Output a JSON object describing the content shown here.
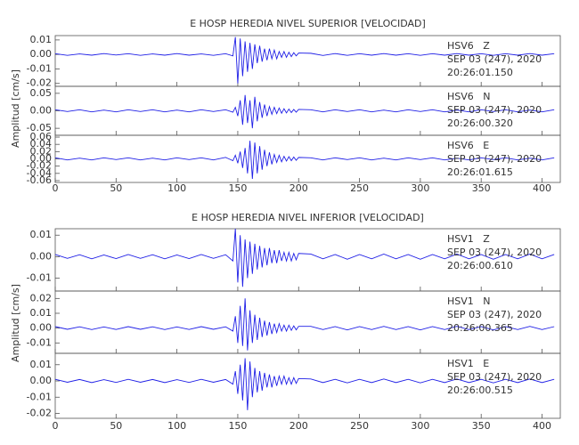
{
  "chart_data": [
    {
      "type": "line",
      "title": "E HOSP HEREDIA NIVEL SUPERIOR [VELOCIDAD]",
      "y_label": "Amplitud [cm/s]",
      "xlim": [
        0,
        415
      ],
      "xticks": [
        0,
        50,
        100,
        150,
        200,
        250,
        300,
        350,
        400
      ],
      "x": [
        0,
        10,
        20,
        30,
        40,
        50,
        60,
        70,
        80,
        90,
        100,
        110,
        120,
        130,
        140,
        146,
        148,
        150,
        152,
        154,
        156,
        158,
        160,
        162,
        164,
        166,
        168,
        170,
        172,
        174,
        176,
        178,
        180,
        182,
        184,
        186,
        188,
        190,
        192,
        194,
        196,
        198,
        200,
        210,
        220,
        230,
        240,
        250,
        260,
        270,
        280,
        290,
        300,
        310,
        320,
        330,
        340,
        350,
        360,
        370,
        380,
        390,
        400,
        410
      ],
      "panels": [
        {
          "ylim": [
            -0.022,
            0.013
          ],
          "yticks": [
            -0.02,
            -0.01,
            {
              "value": 0,
              "label": "0.00"
            },
            0.01
          ],
          "color": "#1f1fe6",
          "annotation": [
            "HSV6   Z",
            "SEP 03 (247), 2020",
            "20:26:01.150"
          ],
          "values": [
            0.0005,
            -0.0006,
            0.0004,
            -0.0005,
            0.0006,
            -0.0004,
            0.0005,
            -0.0006,
            0.0004,
            -0.0005,
            0.0006,
            -0.0005,
            0.0004,
            -0.0006,
            0.0005,
            -0.001,
            0.012,
            -0.02,
            0.011,
            -0.015,
            0.009,
            -0.012,
            0.008,
            -0.01,
            0.007,
            -0.006,
            0.006,
            -0.005,
            0.004,
            -0.004,
            0.004,
            -0.003,
            0.003,
            -0.003,
            0.002,
            -0.002,
            0.002,
            -0.002,
            0.0015,
            -0.0015,
            0.0012,
            -0.001,
            0.001,
            0.0008,
            -0.0007,
            0.0006,
            -0.0006,
            0.0005,
            -0.0005,
            0.0006,
            -0.0005,
            0.0005,
            -0.0006,
            0.0005,
            -0.0005,
            0.0006,
            -0.0005,
            0.0005,
            -0.0006,
            0.0005,
            -0.0005,
            0.0006,
            -0.0005,
            0.0005
          ]
        },
        {
          "ylim": [
            -0.07,
            0.07
          ],
          "yticks": [
            -0.05,
            {
              "value": 0,
              "label": "0.00"
            },
            0.05
          ],
          "color": "#1f1fe6",
          "annotation": [
            "HSV6   N",
            "SEP 03 (247), 2020",
            "20:26:00.320"
          ],
          "values": [
            0.003,
            -0.002,
            0.003,
            -0.003,
            0.002,
            -0.003,
            0.003,
            -0.002,
            0.003,
            -0.003,
            0.002,
            -0.003,
            0.003,
            -0.002,
            0.003,
            -0.004,
            0.01,
            -0.015,
            0.03,
            -0.04,
            0.045,
            -0.035,
            0.03,
            -0.05,
            0.04,
            -0.03,
            0.025,
            -0.02,
            0.018,
            -0.015,
            0.012,
            -0.01,
            0.01,
            -0.008,
            0.008,
            -0.007,
            0.006,
            -0.006,
            0.005,
            -0.005,
            0.004,
            -0.004,
            0.004,
            0.003,
            -0.003,
            0.003,
            -0.002,
            0.003,
            -0.003,
            0.002,
            -0.003,
            0.003,
            -0.002,
            0.003,
            -0.003,
            0.002,
            -0.003,
            0.003,
            -0.002,
            0.003,
            -0.003,
            0.002,
            -0.003,
            0.003
          ]
        },
        {
          "ylim": [
            -0.065,
            0.065
          ],
          "yticks": [
            -0.06,
            -0.04,
            -0.02,
            {
              "value": 0,
              "label": "0.00"
            },
            0.02,
            0.04,
            0.06
          ],
          "color": "#1f1fe6",
          "annotation": [
            "HSV6   E",
            "SEP 03 (247), 2020",
            "20:26:01.615"
          ],
          "values": [
            0.003,
            -0.003,
            0.002,
            -0.003,
            0.003,
            -0.002,
            0.003,
            -0.003,
            0.002,
            -0.003,
            0.003,
            -0.002,
            0.003,
            -0.003,
            0.004,
            -0.005,
            0.01,
            -0.012,
            0.02,
            -0.025,
            0.03,
            -0.04,
            0.05,
            -0.055,
            0.045,
            -0.04,
            0.035,
            -0.03,
            0.025,
            -0.02,
            0.018,
            -0.015,
            0.012,
            -0.01,
            0.01,
            -0.008,
            0.007,
            -0.006,
            0.006,
            -0.005,
            0.005,
            -0.004,
            0.004,
            0.003,
            -0.003,
            0.003,
            -0.002,
            0.003,
            -0.003,
            0.002,
            -0.003,
            0.003,
            -0.002,
            0.003,
            -0.003,
            0.002,
            -0.003,
            0.003,
            -0.002,
            0.003,
            -0.003,
            0.002,
            -0.003,
            0.003
          ]
        }
      ]
    },
    {
      "type": "line",
      "title": "E HOSP HEREDIA NIVEL INFERIOR [VELOCIDAD]",
      "y_label": "Amplitud [cm/s]",
      "xlim": [
        0,
        415
      ],
      "xticks": [
        0,
        50,
        100,
        150,
        200,
        250,
        300,
        350,
        400
      ],
      "x": [
        0,
        10,
        20,
        30,
        40,
        50,
        60,
        70,
        80,
        90,
        100,
        110,
        120,
        130,
        140,
        146,
        148,
        150,
        152,
        154,
        156,
        158,
        160,
        162,
        164,
        166,
        168,
        170,
        172,
        174,
        176,
        178,
        180,
        182,
        184,
        186,
        188,
        190,
        192,
        194,
        196,
        198,
        200,
        210,
        220,
        230,
        240,
        250,
        260,
        270,
        280,
        290,
        300,
        310,
        320,
        330,
        340,
        350,
        360,
        370,
        380,
        390,
        400,
        410
      ],
      "panels": [
        {
          "ylim": [
            -0.016,
            0.013
          ],
          "yticks": [
            -0.01,
            {
              "value": 0,
              "label": "0.00"
            },
            0.01
          ],
          "color": "#1f1fe6",
          "annotation": [
            "HSV1   Z",
            "SEP 03 (247), 2020",
            "20:26:00.610"
          ],
          "values": [
            0.001,
            -0.0008,
            0.0009,
            -0.001,
            0.0008,
            -0.0009,
            0.001,
            -0.0008,
            0.0009,
            -0.001,
            0.0008,
            -0.0009,
            0.001,
            -0.0008,
            0.0009,
            -0.002,
            0.013,
            -0.012,
            0.01,
            -0.014,
            0.008,
            -0.01,
            0.007,
            -0.008,
            0.006,
            -0.006,
            0.005,
            -0.005,
            0.004,
            -0.004,
            0.004,
            -0.003,
            0.003,
            -0.003,
            0.003,
            -0.002,
            0.002,
            -0.002,
            0.002,
            -0.002,
            0.0015,
            -0.0015,
            0.0015,
            0.0012,
            -0.001,
            0.001,
            -0.0012,
            0.001,
            -0.001,
            0.0012,
            -0.001,
            0.001,
            -0.0012,
            0.001,
            -0.001,
            0.0012,
            -0.001,
            0.001,
            -0.0012,
            0.001,
            -0.001,
            0.0012,
            -0.001,
            0.001
          ]
        },
        {
          "ylim": [
            -0.017,
            0.025
          ],
          "yticks": [
            -0.01,
            {
              "value": 0,
              "label": "0.00"
            },
            0.01,
            0.02
          ],
          "color": "#1f1fe6",
          "annotation": [
            "HSV1   N",
            "SEP 03 (247), 2020",
            "20:26:00.365"
          ],
          "values": [
            0.001,
            -0.0008,
            0.0009,
            -0.001,
            0.0008,
            -0.0009,
            0.001,
            -0.0008,
            0.0009,
            -0.001,
            0.0008,
            -0.0009,
            0.001,
            -0.0008,
            0.0009,
            -0.002,
            0.008,
            -0.01,
            0.015,
            -0.012,
            0.02,
            -0.015,
            0.012,
            -0.01,
            0.009,
            -0.008,
            0.007,
            -0.006,
            0.005,
            -0.005,
            0.004,
            -0.004,
            0.003,
            -0.003,
            0.003,
            -0.002,
            0.002,
            -0.002,
            0.002,
            -0.0015,
            0.0015,
            -0.0012,
            0.0012,
            0.0012,
            -0.001,
            0.001,
            -0.0012,
            0.001,
            -0.001,
            0.0012,
            -0.001,
            0.001,
            -0.0012,
            0.001,
            -0.001,
            0.0012,
            -0.001,
            0.001,
            -0.0012,
            0.001,
            -0.001,
            0.0012,
            -0.001,
            0.001
          ]
        },
        {
          "ylim": [
            -0.023,
            0.017
          ],
          "yticks": [
            -0.02,
            -0.01,
            {
              "value": 0,
              "label": "0.00"
            },
            0.01
          ],
          "color": "#1f1fe6",
          "annotation": [
            "HSV1   E",
            "SEP 03 (247), 2020",
            "20:26:00.515"
          ],
          "values": [
            0.001,
            -0.0008,
            0.0009,
            -0.001,
            0.0008,
            -0.0009,
            0.001,
            -0.0008,
            0.0009,
            -0.001,
            0.0008,
            -0.0009,
            0.001,
            -0.0008,
            0.0009,
            -0.002,
            0.006,
            -0.008,
            0.01,
            -0.012,
            0.014,
            -0.018,
            0.012,
            -0.01,
            0.008,
            -0.007,
            0.006,
            -0.006,
            0.005,
            -0.004,
            0.004,
            -0.004,
            0.003,
            -0.003,
            0.003,
            -0.002,
            0.003,
            -0.002,
            0.002,
            -0.002,
            0.002,
            -0.0015,
            0.0015,
            0.0012,
            -0.001,
            0.001,
            -0.0012,
            0.001,
            -0.001,
            0.0012,
            -0.001,
            0.001,
            -0.0012,
            0.001,
            -0.001,
            0.0012,
            -0.001,
            0.001,
            -0.0012,
            0.001,
            -0.001,
            0.0012,
            -0.001,
            0.001
          ]
        }
      ]
    }
  ]
}
